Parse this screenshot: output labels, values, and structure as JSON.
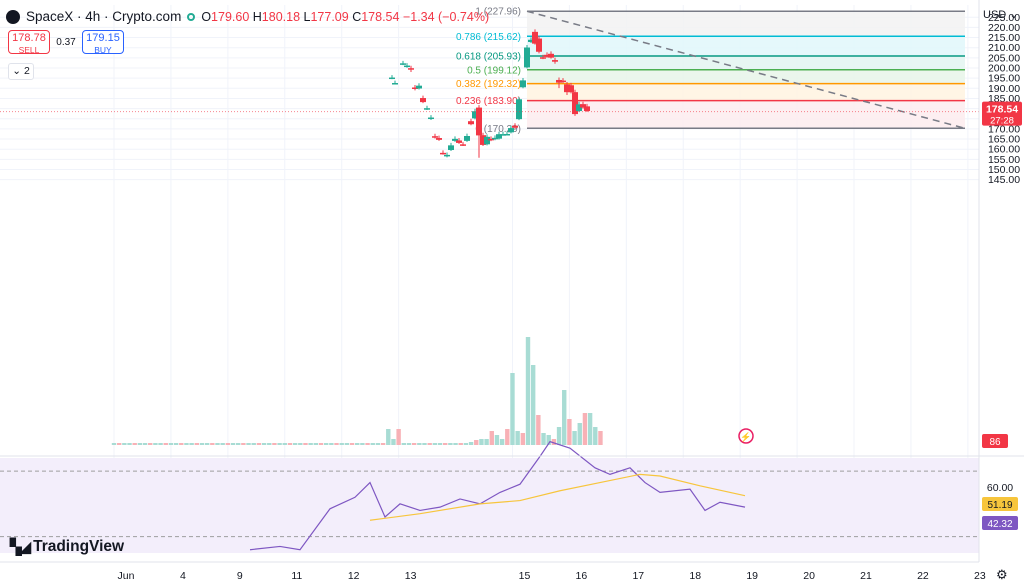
{
  "header": {
    "symbol": "SpaceX · 4h · Crypto.com",
    "open_label": "O",
    "open": "179.60",
    "high_label": "H",
    "high": "180.18",
    "low_label": "L",
    "low": "177.09",
    "close_label": "C",
    "close": "178.54",
    "change": "−1.34 (−0.74%)"
  },
  "trade": {
    "sell_price": "178.78",
    "sell_label": "SELL",
    "spread": "0.37",
    "buy_price": "179.15",
    "buy_label": "BUY"
  },
  "indicators_collapse": "2",
  "currency": "USD",
  "brand": "TradingView",
  "colors": {
    "up": "#22ab94",
    "down": "#f23645",
    "rsi": "#7e57c2",
    "rsi_ma": "#f7c53c"
  },
  "chart_data": {
    "type": "candlestick",
    "y_axis": {
      "range": [
        141.5,
        229
      ],
      "ticks": [
        145,
        150,
        155,
        160,
        165,
        170,
        175,
        180,
        185,
        190,
        195,
        200,
        205,
        210,
        215,
        220,
        225
      ]
    },
    "x_ticks": [
      {
        "label": "Jun",
        "i": 0
      },
      {
        "label": "4",
        "i": 11
      },
      {
        "label": "9",
        "i": 22
      },
      {
        "label": "11",
        "i": 33
      },
      {
        "label": "12",
        "i": 44
      },
      {
        "label": "13",
        "i": 55
      },
      {
        "label": "15",
        "i": 77
      },
      {
        "label": "16",
        "i": 88
      },
      {
        "label": "17",
        "i": 99
      },
      {
        "label": "18",
        "i": 110
      },
      {
        "label": "19",
        "i": 121
      },
      {
        "label": "20",
        "i": 132
      },
      {
        "label": "21",
        "i": 143
      },
      {
        "label": "22",
        "i": 154
      },
      {
        "label": "23",
        "i": 165
      }
    ],
    "candles": [
      [
        196,
        -1.5,
        195.3,
        195.3,
        195
      ],
      [
        197.5,
        0.5,
        192.6,
        192.6,
        192.4
      ],
      [
        201.5,
        5,
        201.9,
        202.3,
        202.3
      ],
      [
        203.5,
        6.5,
        201.2,
        201.2,
        200.6
      ],
      [
        205.5,
        6.5,
        199.9,
        199.3,
        198.5
      ],
      [
        207.5,
        8.5,
        190.4,
        189.8,
        189.5
      ],
      [
        209.5,
        10.5,
        189.9,
        191.3,
        191.3
      ],
      [
        211.5,
        11.5,
        185.2,
        183.2,
        183.2
      ],
      [
        213.5,
        13.5,
        179.8,
        180.2,
        180.2
      ],
      [
        215.5,
        15.5,
        174.9,
        175.6,
        175.6
      ],
      [
        217.5,
        17.5,
        166.4,
        165.8,
        165.8
      ],
      [
        219.5,
        19.5,
        165.5,
        164.6,
        164.6
      ],
      [
        221.5,
        21.5,
        158.2,
        157.8,
        157.8
      ],
      [
        223.5,
        23.5,
        156.5,
        157.2,
        157.2
      ],
      [
        225.5,
        25.5,
        159.6,
        161.9,
        162.0
      ],
      [
        227.5,
        27.5,
        164.1,
        165.1,
        165.1
      ],
      [
        229.5,
        29.5,
        164.3,
        163.1,
        163.1
      ],
      [
        231.5,
        31.5,
        162.4,
        162.1,
        162.1
      ],
      [
        233.5,
        33.5,
        164.1,
        166.5,
        166.5
      ],
      [
        235.5,
        35.5,
        173.8,
        172.3,
        172.3
      ],
      [
        237.5,
        37.5,
        175.2,
        178.7,
        185.0
      ],
      [
        239.5,
        39.5,
        180.5,
        166.8,
        156.3
      ],
      [
        241.5,
        41.5,
        166.9,
        162.1,
        163.2
      ],
      [
        243.5,
        43.5,
        162.4,
        166.1,
        167.0
      ],
      [
        245.5,
        45.5,
        165.1,
        164.8,
        164.5
      ],
      [
        247.5,
        47.5,
        164.9,
        165.6,
        165.5
      ],
      [
        249.5,
        49.5,
        165.2,
        167.4,
        167.8
      ],
      [
        251.5,
        51.5,
        167.3,
        167.4,
        167.5
      ],
      [
        253.5,
        53.5,
        167.3,
        167.5,
        167.6
      ],
      [
        255.5,
        55.5,
        168.3,
        170.4,
        170.5
      ],
      [
        257.5,
        57.5,
        171.6,
        170.6,
        170.8
      ],
      [
        259.5,
        59.5,
        174.8,
        184.6,
        185.3
      ],
      [
        261.5,
        61.5,
        190.5,
        193.9,
        199.4
      ],
      [
        263.5,
        63.5,
        200.3,
        210.1,
        228.6
      ],
      [
        265.5,
        65.5,
        212.8,
        213.9,
        213.7
      ],
      [
        267.5,
        67.5,
        217.8,
        212.0,
        212.3
      ],
      [
        269.5,
        69.5,
        214.5,
        208.0,
        207.7
      ],
      [
        271.5,
        71.5,
        205.3,
        205.2,
        204.9
      ],
      [
        273.5,
        73.5,
        206.5,
        205.5,
        205.6
      ],
      [
        275.5,
        75.5,
        207.0,
        205.1,
        205.2
      ],
      [
        277.5,
        77.5,
        203.9,
        203.1,
        202.6
      ],
      [
        279.5,
        79.5,
        194.1,
        192.8,
        190.6
      ],
      [
        281.5,
        81.5,
        193.8,
        193.2,
        193.0
      ],
      [
        283.5,
        83.5,
        191.9,
        188.1,
        187.2
      ],
      [
        285.5,
        85.5,
        191.5,
        188.1,
        188.0
      ],
      [
        287.5,
        87.5,
        188.1,
        177.3,
        176.9
      ],
      [
        289.5,
        89.5,
        178.8,
        182.1,
        182.6
      ],
      [
        291.5,
        91.5,
        182.2,
        180.5,
        180.4
      ],
      [
        293.5,
        93.5,
        181.1,
        178.8,
        179.1
      ]
    ],
    "fib_levels": [
      {
        "ratio": "1",
        "price": 227.96,
        "label": "1 (227.96)",
        "color": "#787b86"
      },
      {
        "ratio": "0.786",
        "price": 215.62,
        "label": "0.786 (215.62)",
        "color": "#00bcd4"
      },
      {
        "ratio": "0.618",
        "price": 205.93,
        "label": "0.618 (205.93)",
        "color": "#089981"
      },
      {
        "ratio": "0.5",
        "price": 199.12,
        "label": "0.5 (199.12)",
        "color": "#4caf50"
      },
      {
        "ratio": "0.382",
        "price": 192.32,
        "label": "0.382 (192.32)",
        "color": "#ff9800"
      },
      {
        "ratio": "0.236",
        "price": 183.9,
        "label": "0.236 (183.90)",
        "color": "#f23645"
      },
      {
        "ratio": "0",
        "price": 170.29,
        "label": "0 (170.29)",
        "color": "#787b86"
      }
    ],
    "last_price": "178.54",
    "countdown": "27:28",
    "volume_label": "86",
    "rsi": {
      "range": [
        20,
        78
      ],
      "ticks": [
        "60.00",
        "40.00"
      ],
      "rsi_label": "42.32",
      "ma_label": "51.19"
    }
  }
}
